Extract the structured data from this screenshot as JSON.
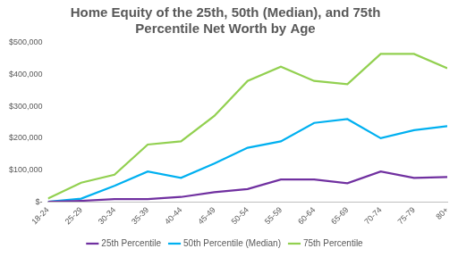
{
  "chart_data": {
    "type": "line",
    "title": [
      "Home Equity of the 25th, 50th (Median), and 75th",
      "Percentile Net Worth by Age"
    ],
    "categories": [
      "18-24",
      "25-29",
      "30-34",
      "35-39",
      "40-44",
      "45-49",
      "50-54",
      "55-59",
      "60-64",
      "65-69",
      "70-74",
      "75-79",
      "80+"
    ],
    "series": [
      {
        "name": "25th Percentile",
        "color": "#7030a0",
        "values": [
          0,
          3000,
          8000,
          8000,
          15000,
          30000,
          40000,
          70000,
          70000,
          58000,
          95000,
          75000,
          78000
        ]
      },
      {
        "name": "50th Percentile (Median)",
        "color": "#00b0f0",
        "values": [
          0,
          10000,
          50000,
          95000,
          75000,
          120000,
          170000,
          190000,
          248000,
          260000,
          200000,
          225000,
          238000
        ]
      },
      {
        "name": "75th Percentile",
        "color": "#92d050",
        "values": [
          10000,
          60000,
          85000,
          180000,
          190000,
          270000,
          380000,
          425000,
          380000,
          370000,
          465000,
          465000,
          420000
        ]
      }
    ],
    "ylim": [
      0,
      500000
    ],
    "yticks": [
      {
        "value": 0,
        "label": "$-"
      },
      {
        "value": 100000,
        "label": "$100,000"
      },
      {
        "value": 200000,
        "label": "$200,000"
      },
      {
        "value": 300000,
        "label": "$300,000"
      },
      {
        "value": 400000,
        "label": "$400,000"
      },
      {
        "value": 500000,
        "label": "$500,000"
      }
    ],
    "grid": false,
    "legend": "bottom"
  }
}
